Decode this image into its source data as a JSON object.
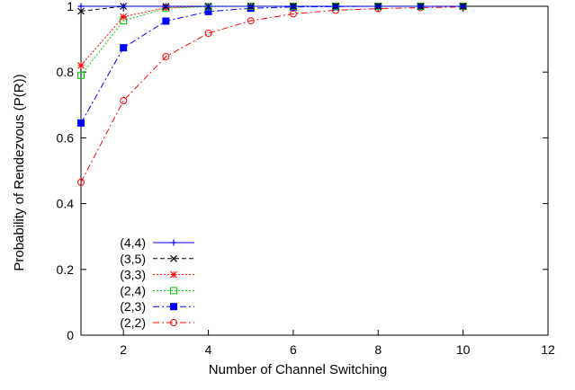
{
  "chart_data": {
    "type": "line",
    "title": "",
    "xlabel": "Number of Channel Switching",
    "ylabel": "Probability of Rendezvous (P(R))",
    "xlim": [
      1,
      12
    ],
    "ylim": [
      0,
      1
    ],
    "xticks": [
      2,
      4,
      6,
      8,
      10,
      12
    ],
    "xtick_labels": [
      "2",
      "4",
      "6",
      "8",
      "10",
      "12"
    ],
    "yticks": [
      0,
      0.2,
      0.4,
      0.6,
      0.8,
      1
    ],
    "ytick_labels": [
      "0",
      "0.2",
      "0.4",
      "0.6",
      "0.8",
      "1"
    ],
    "grid": false,
    "legend_position": "bottom-left",
    "x": [
      1,
      2,
      3,
      4,
      5,
      6,
      7,
      8,
      9,
      10
    ],
    "series": [
      {
        "name": "(4,4)",
        "color": "#0000ff",
        "dash": "solid",
        "marker": "plus",
        "values": [
          1.0,
          1.0,
          1.0,
          1.0,
          1.0,
          1.0,
          1.0,
          1.0,
          1.0,
          1.0
        ]
      },
      {
        "name": "(3,5)",
        "color": "#000000",
        "dash": "dashed",
        "marker": "cross",
        "values": [
          0.985,
          1.0,
          1.0,
          1.0,
          1.0,
          1.0,
          1.0,
          1.0,
          1.0,
          1.0
        ]
      },
      {
        "name": "(3,3)",
        "color": "#ff0000",
        "dash": "dotted",
        "marker": "star",
        "values": [
          0.82,
          0.968,
          0.996,
          1.0,
          1.0,
          1.0,
          1.0,
          1.0,
          1.0,
          1.0
        ]
      },
      {
        "name": "(2,4)",
        "color": "#00cc00",
        "dash": "dotted",
        "marker": "square-open",
        "values": [
          0.79,
          0.956,
          0.994,
          0.999,
          1.0,
          1.0,
          1.0,
          1.0,
          1.0,
          1.0
        ]
      },
      {
        "name": "(2,3)",
        "color": "#0000ff",
        "dash": "dashdot",
        "marker": "square-filled",
        "values": [
          0.645,
          0.874,
          0.955,
          0.984,
          0.994,
          0.998,
          0.999,
          1.0,
          1.0,
          1.0
        ]
      },
      {
        "name": "(2,2)",
        "color": "#ff0000",
        "dash": "dashdot",
        "marker": "circle-open",
        "values": [
          0.465,
          0.713,
          0.847,
          0.918,
          0.956,
          0.977,
          0.988,
          0.993,
          0.996,
          0.998
        ]
      }
    ]
  }
}
